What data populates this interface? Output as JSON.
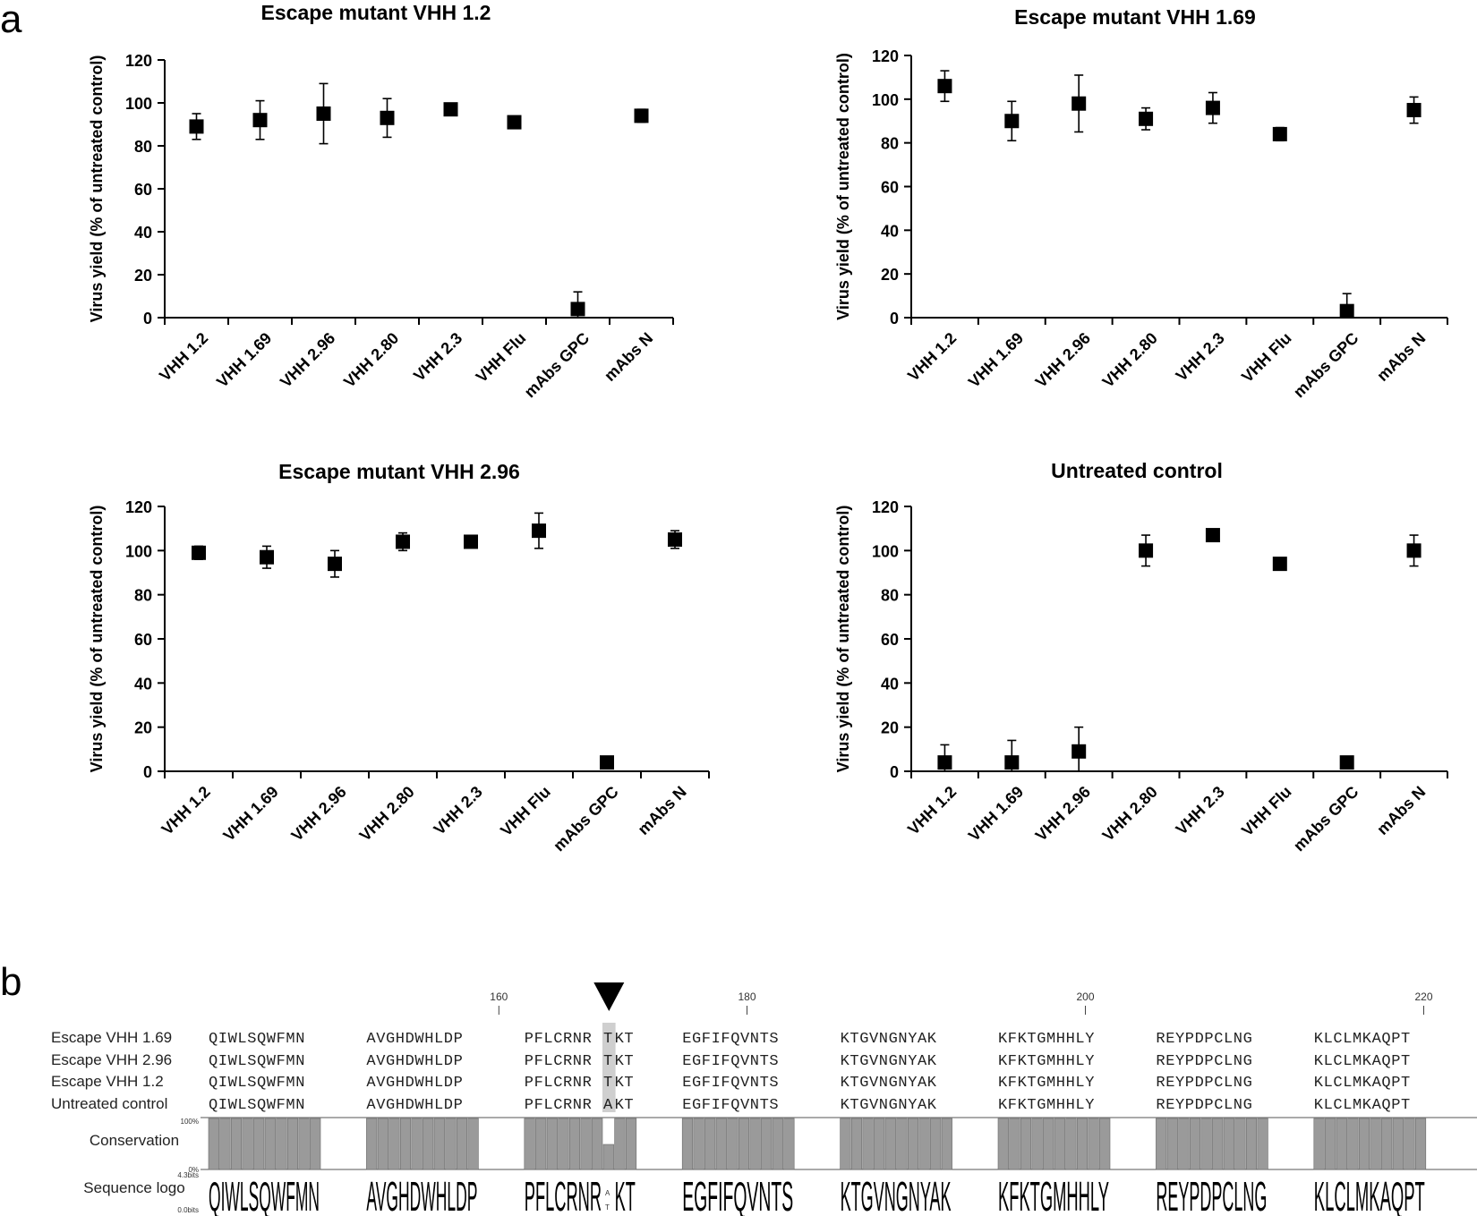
{
  "figure": {
    "panel_a_label": "a",
    "panel_b_label": "b"
  },
  "chart_data": [
    {
      "type": "scatter",
      "title": "Escape mutant VHH 1.2",
      "ylabel": "Virus yield (% of untreated control)",
      "xlabel": "",
      "ylim": [
        0,
        120
      ],
      "yticks": [
        "0",
        "20",
        "40",
        "60",
        "80",
        "100",
        "120"
      ],
      "categories": [
        "VHH 1.2",
        "VHH 1.69",
        "VHH 2.96",
        "VHH 2.80",
        "VHH 2.3",
        "VHH Flu",
        "mAbs GPC",
        "mAbs N"
      ],
      "values": [
        89,
        92,
        95,
        93,
        97,
        91,
        4,
        94
      ],
      "errors": [
        6,
        9,
        14,
        9,
        2,
        2,
        8,
        3
      ]
    },
    {
      "type": "scatter",
      "title": "Escape mutant VHH 1.69",
      "ylabel": "Virus yield (% of untreated control)",
      "xlabel": "",
      "ylim": [
        0,
        120
      ],
      "yticks": [
        "0",
        "20",
        "40",
        "60",
        "80",
        "100",
        "120"
      ],
      "categories": [
        "VHH 1.2",
        "VHH 1.69",
        "VHH 2.96",
        "VHH 2.80",
        "VHH 2.3",
        "VHH Flu",
        "mAbs GPC",
        "mAbs N"
      ],
      "values": [
        106,
        90,
        98,
        91,
        96,
        84,
        3,
        95
      ],
      "errors": [
        7,
        9,
        13,
        5,
        7,
        3,
        8,
        6
      ]
    },
    {
      "type": "scatter",
      "title": "Escape mutant VHH 2.96",
      "ylabel": "Virus yield (% of untreated control)",
      "xlabel": "",
      "ylim": [
        0,
        120
      ],
      "yticks": [
        "0",
        "20",
        "40",
        "60",
        "80",
        "100",
        "120"
      ],
      "categories": [
        "VHH 1.2",
        "VHH 1.69",
        "VHH 2.96",
        "VHH 2.80",
        "VHH 2.3",
        "VHH Flu",
        "mAbs GPC",
        "mAbs N"
      ],
      "values": [
        99,
        97,
        94,
        104,
        104,
        109,
        4,
        105
      ],
      "errors": [
        3,
        5,
        6,
        4,
        2,
        8,
        1,
        4
      ]
    },
    {
      "type": "scatter",
      "title": "Untreated control",
      "ylabel": "Virus yield (% of untreated control)",
      "xlabel": "",
      "ylim": [
        0,
        120
      ],
      "yticks": [
        "0",
        "20",
        "40",
        "60",
        "80",
        "100",
        "120"
      ],
      "categories": [
        "VHH 1.2",
        "VHH 1.69",
        "VHH 2.96",
        "VHH 2.80",
        "VHH 2.3",
        "VHH Flu",
        "mAbs GPC",
        "mAbs N"
      ],
      "values": [
        4,
        4,
        9,
        100,
        107,
        94,
        4,
        100
      ],
      "errors": [
        8,
        10,
        11,
        7,
        2,
        1,
        2,
        7
      ]
    }
  ],
  "alignment": {
    "positions": [
      "160",
      "180",
      "200",
      "220"
    ],
    "sequences": [
      {
        "name": "Escape VHH 1.69",
        "blocks": [
          "QIWLSQWFMN",
          "AVGHDWHLDP",
          "PFLCRNR",
          "T",
          "KT",
          "EGFIFQVNTS",
          "KTGVNGNYAK",
          "KFKTGMHHLY",
          "REYPDPCLNG",
          "KLCLMKAQPT"
        ]
      },
      {
        "name": "Escape VHH 2.96",
        "blocks": [
          "QIWLSQWFMN",
          "AVGHDWHLDP",
          "PFLCRNR",
          "T",
          "KT",
          "EGFIFQVNTS",
          "KTGVNGNYAK",
          "KFKTGMHHLY",
          "REYPDPCLNG",
          "KLCLMKAQPT"
        ]
      },
      {
        "name": "Escape VHH 1.2",
        "blocks": [
          "QIWLSQWFMN",
          "AVGHDWHLDP",
          "PFLCRNR",
          "T",
          "KT",
          "EGFIFQVNTS",
          "KTGVNGNYAK",
          "KFKTGMHHLY",
          "REYPDPCLNG",
          "KLCLMKAQPT"
        ]
      },
      {
        "name": "Untreated control",
        "blocks": [
          "QIWLSQWFMN",
          "AVGHDWHLDP",
          "PFLCRNR",
          "A",
          "KT",
          "EGFIFQVNTS",
          "KTGVNGNYAK",
          "KFKTGMHHLY",
          "REYPDPCLNG",
          "KLCLMKAQPT"
        ]
      }
    ],
    "conservation_label": "Conservation",
    "conservation_max": "100%",
    "conservation_min": "0%",
    "logo_label": "Sequence logo",
    "logo_max": "4.3bits",
    "logo_min": "0.0bits",
    "logo_blocks": [
      "QIWLSQWFMN",
      "AVGHDWHLDP",
      "PFLCRNR",
      "KT",
      "EGFIFQVNTS",
      "KTGVNGNYAK",
      "KFKTGMHHLY",
      "REYPDPCLNG",
      "KLCLMKAQPT"
    ],
    "marker": "mutation-site-arrow"
  }
}
